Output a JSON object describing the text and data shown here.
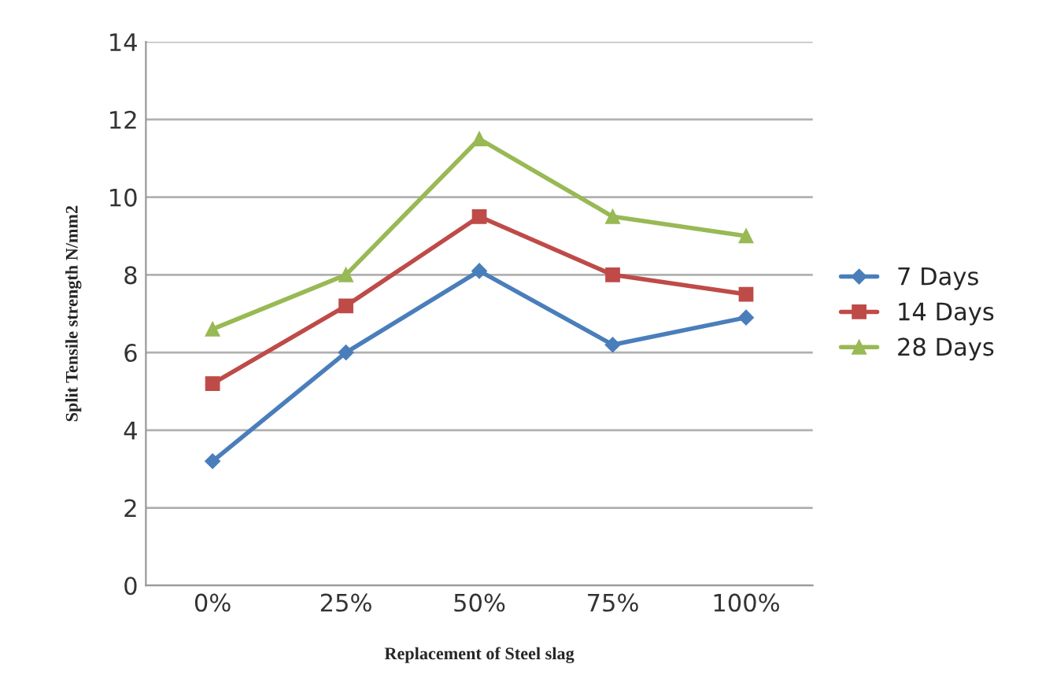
{
  "chart_data": {
    "type": "line",
    "xlabel": "Replacement of Steel slag",
    "ylabel": "Split Tensile strength N/mm2",
    "categories": [
      "0%",
      "25%",
      "50%",
      "75%",
      "100%"
    ],
    "series": [
      {
        "name": "7 Days",
        "color": "#4a7ebb",
        "marker": "diamond",
        "values": [
          3.2,
          6.0,
          8.1,
          6.2,
          6.9
        ]
      },
      {
        "name": "14 Days",
        "color": "#be4b48",
        "marker": "square",
        "values": [
          5.2,
          7.2,
          9.5,
          8.0,
          7.5
        ]
      },
      {
        "name": "28 Days",
        "color": "#98b954",
        "marker": "triangle",
        "values": [
          6.6,
          8.0,
          11.5,
          9.5,
          9.0
        ]
      }
    ],
    "ylim": [
      0,
      14
    ],
    "yticks": [
      0,
      2,
      4,
      6,
      8,
      10,
      12,
      14
    ],
    "grid": "y",
    "legend": "right",
    "line_style": "solid"
  }
}
